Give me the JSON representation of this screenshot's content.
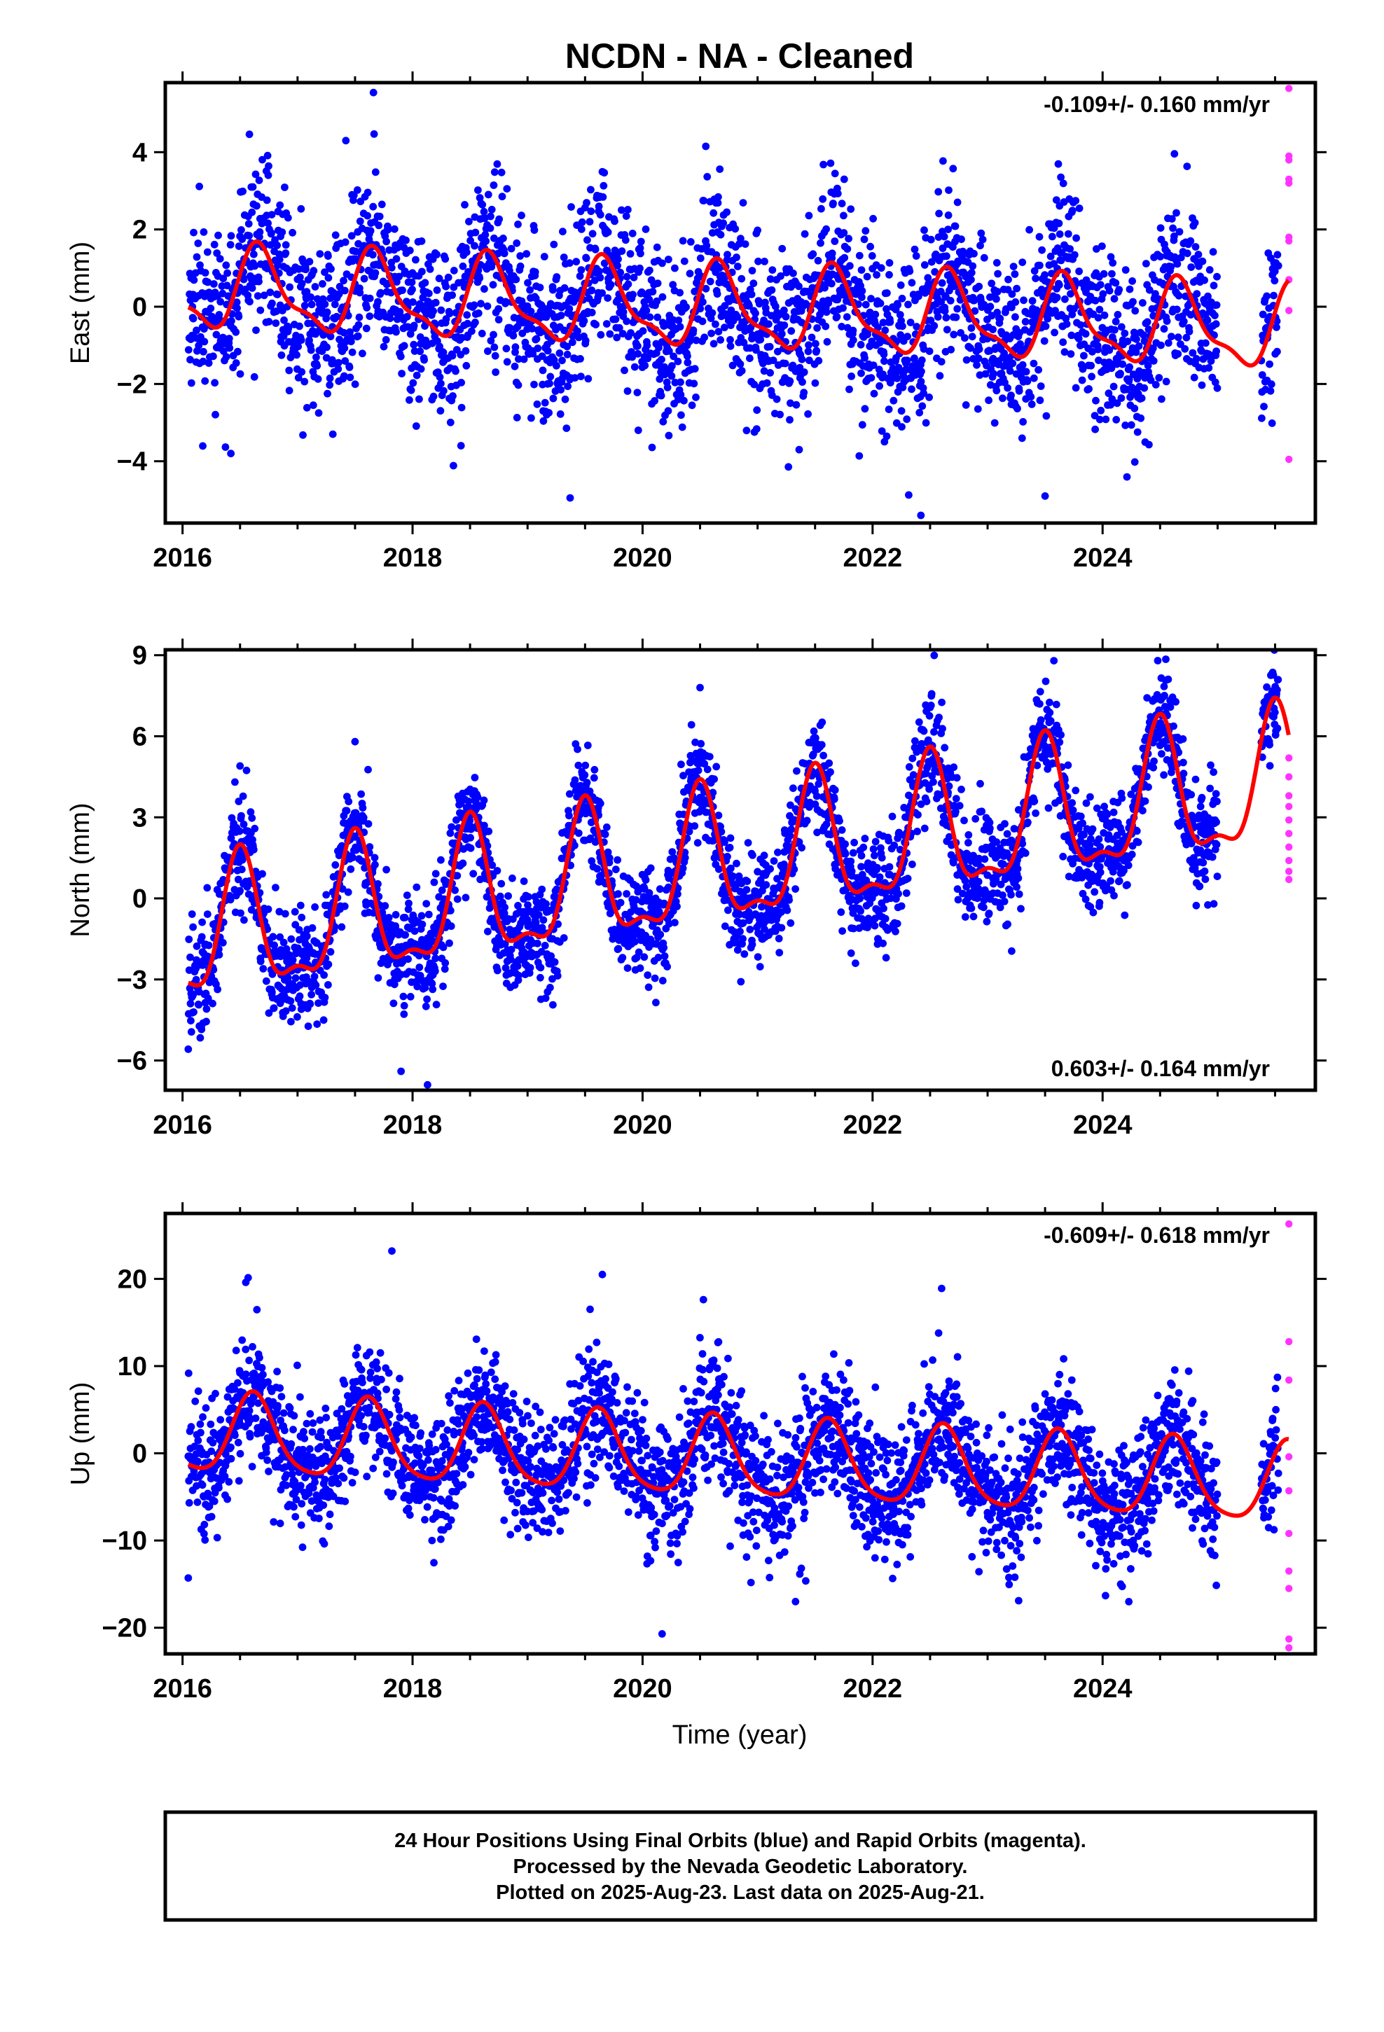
{
  "title": "NCDN  - NA - Cleaned",
  "colors": {
    "final": "#0000ff",
    "rapid": "#ff33ff",
    "fit": "#ff0000",
    "frame": "#000000"
  },
  "xaxis": {
    "label": "Time (year)",
    "range": [
      2015.85,
      2025.85
    ],
    "ticks": [
      2016,
      2018,
      2020,
      2022,
      2024
    ],
    "tick_labels": [
      "2016",
      "2018",
      "2020",
      "2022",
      "2024"
    ]
  },
  "chart_data": [
    {
      "type": "scatter",
      "ylabel": "East (mm)",
      "ylim": [
        -5.6,
        5.8
      ],
      "yticks": [
        -4,
        -2,
        0,
        2,
        4
      ],
      "ytick_labels": [
        "−4",
        "−2",
        "0",
        "2",
        "4"
      ],
      "rate_text": "-0.109+/- 0.160 mm/yr",
      "rate_position": "top-right",
      "trend_mm_per_yr": -0.109,
      "seasonal": {
        "offset": 0.45,
        "annual_amp": 1.0,
        "annual_peak_phase": 0.68,
        "semi_amp": 0.35,
        "semi_phase": 0.12
      },
      "scatter_sd": 1.15,
      "rapid_values": [
        5.65,
        3.9,
        3.8,
        3.3,
        3.2,
        1.8,
        1.7,
        0.7,
        -0.1,
        -3.95
      ],
      "outliers": [
        {
          "x": 2019.37,
          "y": -4.95
        },
        {
          "x": 2022.42,
          "y": -5.4
        },
        {
          "x": 2023.5,
          "y": -4.9
        },
        {
          "x": 2017.42,
          "y": 4.3
        },
        {
          "x": 2020.55,
          "y": 4.15
        },
        {
          "x": 2016.42,
          "y": -3.8
        }
      ]
    },
    {
      "type": "scatter",
      "ylabel": "North (mm)",
      "ylim": [
        -7.1,
        9.2
      ],
      "yticks": [
        -6,
        -3,
        0,
        3,
        6,
        9
      ],
      "ytick_labels": [
        "−6",
        "−3",
        "0",
        "3",
        "6",
        "9"
      ],
      "rate_text": "0.603+/- 0.164 mm/yr",
      "rate_position": "bottom-right",
      "trend_mm_per_yr": 0.603,
      "seasonal": {
        "offset": -1.6,
        "annual_amp": 2.4,
        "annual_peak_phase": 0.5,
        "semi_amp": 0.9,
        "semi_phase": 0.0
      },
      "scatter_sd": 1.0,
      "rapid_values": [
        5.2,
        4.5,
        3.8,
        3.4,
        2.9,
        2.4,
        1.9,
        1.4,
        1.0,
        0.7
      ],
      "outliers": [
        {
          "x": 2018.13,
          "y": -6.9
        },
        {
          "x": 2017.9,
          "y": -6.4
        },
        {
          "x": 2024.55,
          "y": 8.85
        },
        {
          "x": 2020.5,
          "y": 7.8
        },
        {
          "x": 2016.5,
          "y": 4.9
        },
        {
          "x": 2017.5,
          "y": 5.8
        }
      ]
    },
    {
      "type": "scatter",
      "ylabel": "Up (mm)",
      "ylim": [
        -23,
        27.5
      ],
      "yticks": [
        -20,
        -10,
        0,
        10,
        20
      ],
      "ytick_labels": [
        "−20",
        "−10",
        "0",
        "10",
        "20"
      ],
      "rate_text": "-0.609+/- 0.618 mm/yr",
      "rate_position": "top-right",
      "trend_mm_per_yr": -0.609,
      "seasonal": {
        "offset": 2.2,
        "annual_amp": 4.5,
        "annual_peak_phase": 0.62,
        "semi_amp": 0.8,
        "semi_phase": 0.1
      },
      "scatter_sd": 3.7,
      "rapid_values": [
        26.3,
        12.8,
        8.4,
        -0.4,
        -4.3,
        -9.2,
        -13.5,
        -15.5,
        -21.3,
        -22.3
      ],
      "outliers": [
        {
          "x": 2020.17,
          "y": -20.7
        },
        {
          "x": 2017.82,
          "y": 23.2
        },
        {
          "x": 2019.65,
          "y": 20.5
        },
        {
          "x": 2016.05,
          "y": -14.3
        },
        {
          "x": 2021.33,
          "y": -17.0
        },
        {
          "x": 2023.27,
          "y": -16.9
        },
        {
          "x": 2016.55,
          "y": 19.6
        },
        {
          "x": 2022.6,
          "y": 18.9
        }
      ]
    }
  ],
  "footer": {
    "line1": "24 Hour Positions Using Final Orbits (blue) and Rapid Orbits (magenta).",
    "line2": "Processed by the Nevada Geodetic Laboratory.",
    "line3": "Plotted on 2025-Aug-23. Last data on 2025-Aug-21."
  }
}
